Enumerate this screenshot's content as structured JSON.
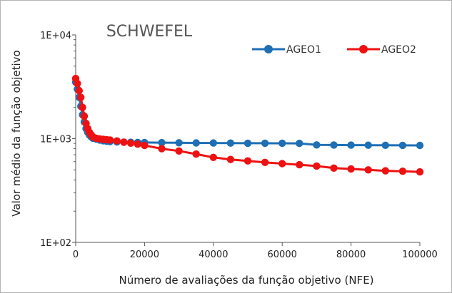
{
  "chart_data": {
    "type": "line",
    "title": "SCHWEFEL",
    "xlabel": "Número de avaliações da função objetivo (NFE)",
    "ylabel": "Valor médio da função objetivo",
    "xlim": [
      0,
      100000
    ],
    "ylim": [
      100,
      10000
    ],
    "yscale": "log",
    "grid": false,
    "legend_position": "top-right",
    "x_ticks": [
      {
        "value": 0,
        "label": "0"
      },
      {
        "value": 20000,
        "label": "20000"
      },
      {
        "value": 40000,
        "label": "40000"
      },
      {
        "value": 60000,
        "label": "60000"
      },
      {
        "value": 80000,
        "label": "80000"
      },
      {
        "value": 100000,
        "label": "100000"
      }
    ],
    "y_ticks": [
      {
        "value": 10000,
        "label": "1E+04"
      },
      {
        "value": 1000,
        "label": "1E+03"
      },
      {
        "value": 100,
        "label": "1E+02"
      }
    ],
    "series": [
      {
        "name": "AGEO1",
        "color": "#1f6fb4",
        "points": [
          [
            0,
            3500
          ],
          [
            500,
            3000
          ],
          [
            1000,
            2500
          ],
          [
            1500,
            2050
          ],
          [
            2000,
            1700
          ],
          [
            2500,
            1450
          ],
          [
            3000,
            1250
          ],
          [
            3500,
            1150
          ],
          [
            4000,
            1080
          ],
          [
            4500,
            1040
          ],
          [
            5000,
            1010
          ],
          [
            6000,
            990
          ],
          [
            7000,
            970
          ],
          [
            8000,
            955
          ],
          [
            9000,
            945
          ],
          [
            10000,
            938
          ],
          [
            12000,
            930
          ],
          [
            14000,
            925
          ],
          [
            16000,
            922
          ],
          [
            18000,
            920
          ],
          [
            20000,
            918
          ],
          [
            25000,
            915
          ],
          [
            30000,
            912
          ],
          [
            35000,
            910
          ],
          [
            40000,
            908
          ],
          [
            45000,
            906
          ],
          [
            50000,
            904
          ],
          [
            55000,
            903
          ],
          [
            60000,
            902
          ],
          [
            65000,
            901
          ],
          [
            70000,
            870
          ],
          [
            75000,
            868
          ],
          [
            80000,
            866
          ],
          [
            85000,
            864
          ],
          [
            90000,
            863
          ],
          [
            95000,
            862
          ],
          [
            100000,
            860
          ]
        ]
      },
      {
        "name": "AGEO2",
        "color": "#ee1111",
        "points": [
          [
            0,
            3800
          ],
          [
            500,
            3400
          ],
          [
            1000,
            2900
          ],
          [
            1500,
            2500
          ],
          [
            2000,
            2000
          ],
          [
            2500,
            1650
          ],
          [
            3000,
            1400
          ],
          [
            3500,
            1250
          ],
          [
            4000,
            1150
          ],
          [
            4500,
            1090
          ],
          [
            5000,
            1040
          ],
          [
            6000,
            1010
          ],
          [
            7000,
            995
          ],
          [
            8000,
            985
          ],
          [
            9000,
            978
          ],
          [
            10000,
            970
          ],
          [
            12000,
            950
          ],
          [
            14000,
            925
          ],
          [
            16000,
            905
          ],
          [
            18000,
            885
          ],
          [
            20000,
            860
          ],
          [
            25000,
            800
          ],
          [
            30000,
            760
          ],
          [
            35000,
            710
          ],
          [
            40000,
            660
          ],
          [
            45000,
            630
          ],
          [
            50000,
            610
          ],
          [
            55000,
            590
          ],
          [
            60000,
            575
          ],
          [
            65000,
            560
          ],
          [
            70000,
            545
          ],
          [
            75000,
            520
          ],
          [
            80000,
            510
          ],
          [
            85000,
            500
          ],
          [
            90000,
            490
          ],
          [
            95000,
            485
          ],
          [
            100000,
            478
          ]
        ]
      }
    ]
  }
}
